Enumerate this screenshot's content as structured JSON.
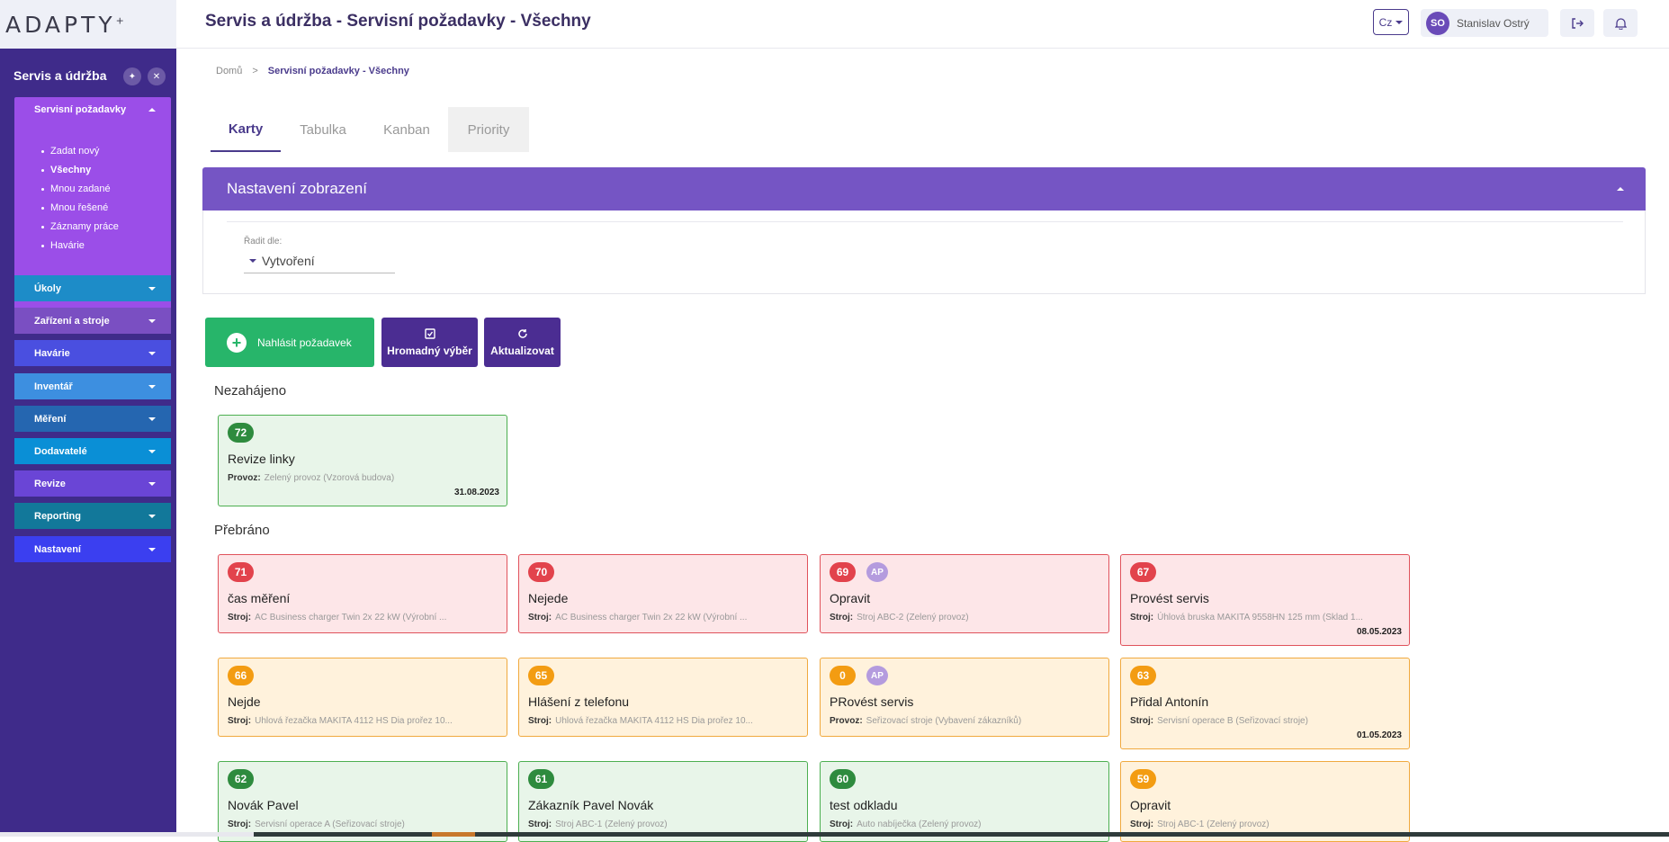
{
  "app": {
    "logo": "ADAPTY",
    "page_title": "Servis a údržba - Servisní požadavky - Všechny"
  },
  "header": {
    "lang": "Cz",
    "user_initials": "SO",
    "user_name": "Stanislav Ostrý",
    "icons": [
      "logout-icon",
      "bell-icon"
    ]
  },
  "sidebar": {
    "title": "Servis a údržba",
    "open_group": {
      "label": "Servisní požadavky",
      "items": [
        "Zadat nový",
        "Všechny",
        "Mnou zadané",
        "Mnou řešené",
        "Záznamy práce",
        "Havárie"
      ],
      "active": "Všechny"
    },
    "groups": [
      {
        "label": "Úkoly",
        "color": "#1d8cc8"
      },
      {
        "label": "Zařízení a stroje",
        "color": "#7a4fc2"
      },
      {
        "label": "Havárie",
        "color": "#4a4fe0"
      },
      {
        "label": "Inventář",
        "color": "#3d8fe0"
      },
      {
        "label": "Měření",
        "color": "#2566b0"
      },
      {
        "label": "Dodavatelé",
        "color": "#0a8fd6"
      },
      {
        "label": "Revize",
        "color": "#6a45d6"
      },
      {
        "label": "Reporting",
        "color": "#12789a"
      },
      {
        "label": "Nastavení",
        "color": "#3b3ff0"
      }
    ]
  },
  "breadcrumb": {
    "home": "Domů",
    "separator": ">",
    "current": "Servisní požadavky - Všechny"
  },
  "tabs": [
    {
      "label": "Karty",
      "active": true
    },
    {
      "label": "Tabulka",
      "active": false
    },
    {
      "label": "Kanban",
      "active": false
    },
    {
      "label": "Priority",
      "active": false
    }
  ],
  "settings_panel": {
    "title": "Nastavení zobrazení",
    "sort_label": "Řadit dle:",
    "sort_value": "Vytvoření"
  },
  "actions": {
    "report": "Nahlásit požadavek",
    "bulk": "Hromadný výběr",
    "refresh": "Aktualizovat"
  },
  "sections": [
    {
      "title": "Nezahájeno",
      "cards": [
        {
          "id": "72",
          "status": "green",
          "title": "Revize linky",
          "meta_label": "Provoz:",
          "meta_value": "Zelený provoz (Vzorová budova)",
          "date": "31.08.2023",
          "assignee": ""
        }
      ]
    },
    {
      "title": "Přebráno",
      "cards": [
        {
          "id": "71",
          "status": "red",
          "title": "čas měření",
          "meta_label": "Stroj:",
          "meta_value": "AC Business charger Twin 2x 22 kW (Výrobní ...",
          "date": "",
          "assignee": ""
        },
        {
          "id": "70",
          "status": "red",
          "title": "Nejede",
          "meta_label": "Stroj:",
          "meta_value": "AC Business charger Twin 2x 22 kW (Výrobní ...",
          "date": "",
          "assignee": ""
        },
        {
          "id": "69",
          "status": "red",
          "title": "Opravit",
          "meta_label": "Stroj:",
          "meta_value": "Stroj ABC-2 (Zelený provoz)",
          "date": "",
          "assignee": "AP"
        },
        {
          "id": "67",
          "status": "red",
          "title": "Provést servis",
          "meta_label": "Stroj:",
          "meta_value": "Úhlová bruska MAKITA 9558HN 125 mm (Sklad 1...",
          "date": "08.05.2023",
          "assignee": ""
        },
        {
          "id": "66",
          "status": "orange",
          "title": "Nejde",
          "meta_label": "Stroj:",
          "meta_value": "Uhlová řezačka MAKITA 4112 HS Dia prořez 10...",
          "date": "",
          "assignee": ""
        },
        {
          "id": "65",
          "status": "orange",
          "title": "Hlášení z telefonu",
          "meta_label": "Stroj:",
          "meta_value": "Uhlová řezačka MAKITA 4112 HS Dia prořez 10...",
          "date": "",
          "assignee": ""
        },
        {
          "id": "0",
          "status": "orange",
          "title": "PRovést servis",
          "meta_label": "Provoz:",
          "meta_value": "Seřizovací stroje (Vybavení zákazníků)",
          "date": "",
          "assignee": "AP"
        },
        {
          "id": "63",
          "status": "orange",
          "title": "Přidal Antonín",
          "meta_label": "Stroj:",
          "meta_value": "Servisní operace B (Seřizovací stroje)",
          "date": "01.05.2023",
          "assignee": ""
        },
        {
          "id": "62",
          "status": "green",
          "title": "Novák Pavel",
          "meta_label": "Stroj:",
          "meta_value": "Servisní operace A (Seřizovací stroje)",
          "date": "",
          "assignee": ""
        },
        {
          "id": "61",
          "status": "green",
          "title": "Zákazník Pavel Novák",
          "meta_label": "Stroj:",
          "meta_value": "Stroj ABC-1 (Zelený provoz)",
          "date": "",
          "assignee": ""
        },
        {
          "id": "60",
          "status": "green",
          "title": "test odkladu",
          "meta_label": "Stroj:",
          "meta_value": "Auto nabíječka (Zelený provoz)",
          "date": "",
          "assignee": ""
        },
        {
          "id": "59",
          "status": "orange",
          "title": "Opravit",
          "meta_label": "Stroj:",
          "meta_value": "Stroj ABC-1 (Zelený provoz)",
          "date": "",
          "assignee": ""
        }
      ]
    }
  ]
}
